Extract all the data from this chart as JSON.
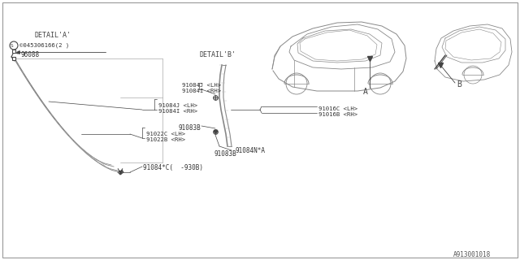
{
  "bg_color": "#ffffff",
  "border_color": "#aaaaaa",
  "line_color": "#888888",
  "dark_line": "#444444",
  "text_color": "#333333",
  "title_bottom_right": "A913001018",
  "detail_a_label": "DETAIL'A'",
  "detail_b_label": "DETAIL'B'",
  "label_A": "A",
  "label_B": "B",
  "part_91084C": "91084*C(  -930B)",
  "part_91022B": "91022B <RH>",
  "part_91022C": "91022C <LH>",
  "part_91083B": "91083B",
  "part_91084N": "91084N*A",
  "part_91084I": "91084I <RH>",
  "part_91084J": "91084J <LH>",
  "part_91016B": "91016B <RH>",
  "part_91016C": "91016C <LH>",
  "part_96088": "96088",
  "part_screw": "©045306166(2 )"
}
